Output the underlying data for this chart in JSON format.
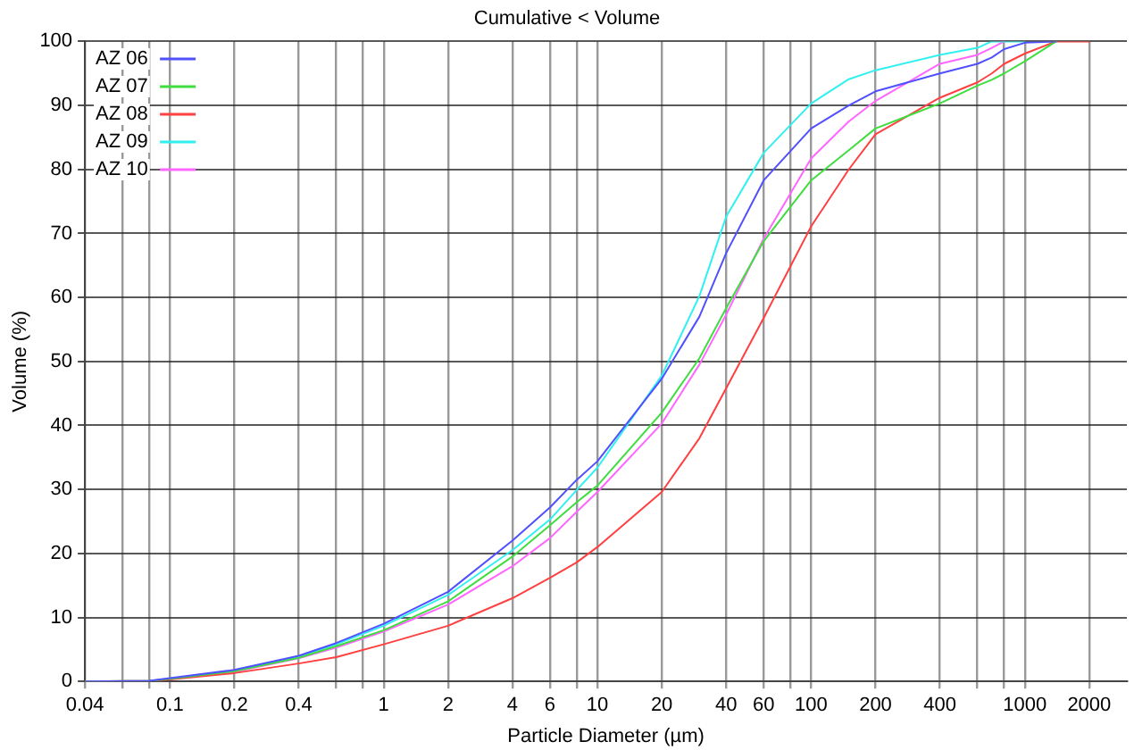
{
  "chart_data": {
    "type": "line",
    "title": "Cumulative < Volume",
    "xlabel": "Particle Diameter (µm)",
    "ylabel": "Volume (%)",
    "log": "x",
    "xlim": [
      0.04,
      3000
    ],
    "ylim": [
      0,
      100
    ],
    "xticks": [
      0.04,
      {
        "value": 0.06,
        "label": null
      },
      {
        "value": 0.08,
        "label": null
      },
      0.1,
      0.2,
      0.4,
      {
        "value": 0.6,
        "label": null
      },
      {
        "value": 0.8,
        "label": null
      },
      1,
      2,
      4,
      6,
      {
        "value": 8,
        "label": null
      },
      10,
      20,
      40,
      60,
      {
        "value": 80,
        "label": null
      },
      100,
      200,
      400,
      {
        "value": 600,
        "label": null
      },
      {
        "value": 800,
        "label": null
      },
      1000,
      2000
    ],
    "yticks": [
      0,
      10,
      20,
      30,
      40,
      50,
      60,
      70,
      80,
      90,
      100
    ],
    "grid": true,
    "legend": "top left",
    "marker": "none",
    "line_style": "solid",
    "x": [
      0.04,
      0.08,
      0.1,
      0.2,
      0.4,
      0.6,
      1,
      2,
      4,
      6,
      8,
      10,
      20,
      30,
      40,
      60,
      100,
      150,
      200,
      400,
      600,
      700,
      800,
      1000,
      1400,
      2000
    ],
    "series": [
      {
        "name": "AZ 06",
        "color": "#5050ff",
        "values": [
          0,
          0.1,
          0.5,
          1.8,
          4,
          6,
          9,
          14,
          22,
          27.2,
          31.5,
          34.4,
          47.3,
          57,
          66.9,
          78.3,
          86.4,
          90,
          92.2,
          95,
          96.5,
          97.5,
          98.8,
          99.8,
          100,
          null
        ]
      },
      {
        "name": "AZ 07",
        "color": "#40dd40",
        "values": [
          0,
          0.1,
          0.4,
          1.6,
          3.7,
          5.5,
          8,
          12.5,
          19.5,
          24.4,
          28,
          30.6,
          42,
          50.5,
          58.3,
          68.8,
          78.3,
          83,
          86.4,
          90.3,
          93.1,
          94,
          95,
          96.9,
          100,
          null
        ]
      },
      {
        "name": "AZ 08",
        "color": "#ff4040",
        "values": [
          0,
          0.1,
          0.3,
          1.3,
          2.8,
          3.8,
          5.8,
          8.7,
          13,
          16.2,
          18.6,
          21,
          29.6,
          38,
          45.8,
          56.8,
          71.1,
          80,
          85.5,
          91.2,
          93.6,
          95,
          96.5,
          98.1,
          100,
          100
        ]
      },
      {
        "name": "AZ 09",
        "color": "#30f0f0",
        "values": [
          null,
          null,
          null,
          1.7,
          3.9,
          5.8,
          8.7,
          13.5,
          20.5,
          25.3,
          29.9,
          33.4,
          47.8,
          60.2,
          72.6,
          82.6,
          90.3,
          94.1,
          95.5,
          97.9,
          99,
          100,
          100,
          100,
          null,
          null
        ]
      },
      {
        "name": "AZ 10",
        "color": "#ff66ff",
        "values": [
          null,
          null,
          0.4,
          1.5,
          3.6,
          5.3,
          7.8,
          12,
          18,
          22.4,
          26.5,
          29.6,
          40.3,
          49.5,
          57.3,
          69.2,
          81.7,
          87.5,
          90.7,
          96.5,
          97.9,
          99,
          100,
          null,
          null,
          null
        ]
      }
    ]
  }
}
